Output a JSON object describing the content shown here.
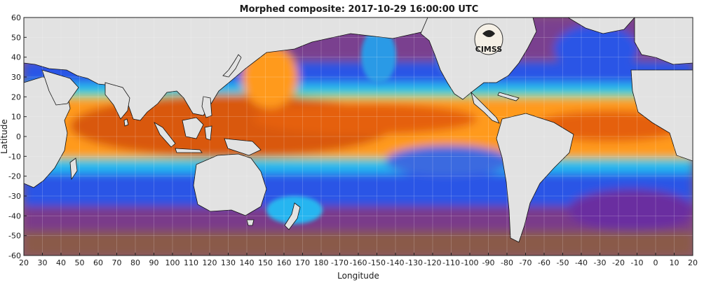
{
  "chart_data": {
    "type": "heatmap",
    "title": "Morphed composite: 2017-10-29 16:00:00 UTC",
    "xlabel": "Longitude",
    "ylabel": "Latitude",
    "x_ticks": [
      "20",
      "30",
      "40",
      "50",
      "60",
      "70",
      "80",
      "90",
      "100",
      "110",
      "120",
      "130",
      "140",
      "150",
      "160",
      "170",
      "180",
      "-170",
      "-160",
      "-150",
      "-140",
      "-130",
      "-120",
      "-110",
      "-100",
      "-90",
      "-80",
      "-70",
      "-60",
      "-50",
      "-40",
      "-30",
      "-20",
      "-10",
      "0",
      "10",
      "20"
    ],
    "y_ticks": [
      "60",
      "50",
      "40",
      "30",
      "20",
      "10",
      "0",
      "-10",
      "-20",
      "-30",
      "-40",
      "-50",
      "-60"
    ],
    "xlim": [
      20,
      380
    ],
    "ylim": [
      -60,
      60
    ],
    "grid": true,
    "colormap": [
      "#ffffff",
      "#d9d9d9",
      "#8a5a4a",
      "#7a2f8f",
      "#5b2fa0",
      "#2c55e6",
      "#27b5f0",
      "#5fe08c",
      "#f2e03a",
      "#ff9a1a",
      "#e5600a",
      "#b8460a"
    ],
    "land_color": "#e2e2e2",
    "logo_text": "CIMSS"
  }
}
